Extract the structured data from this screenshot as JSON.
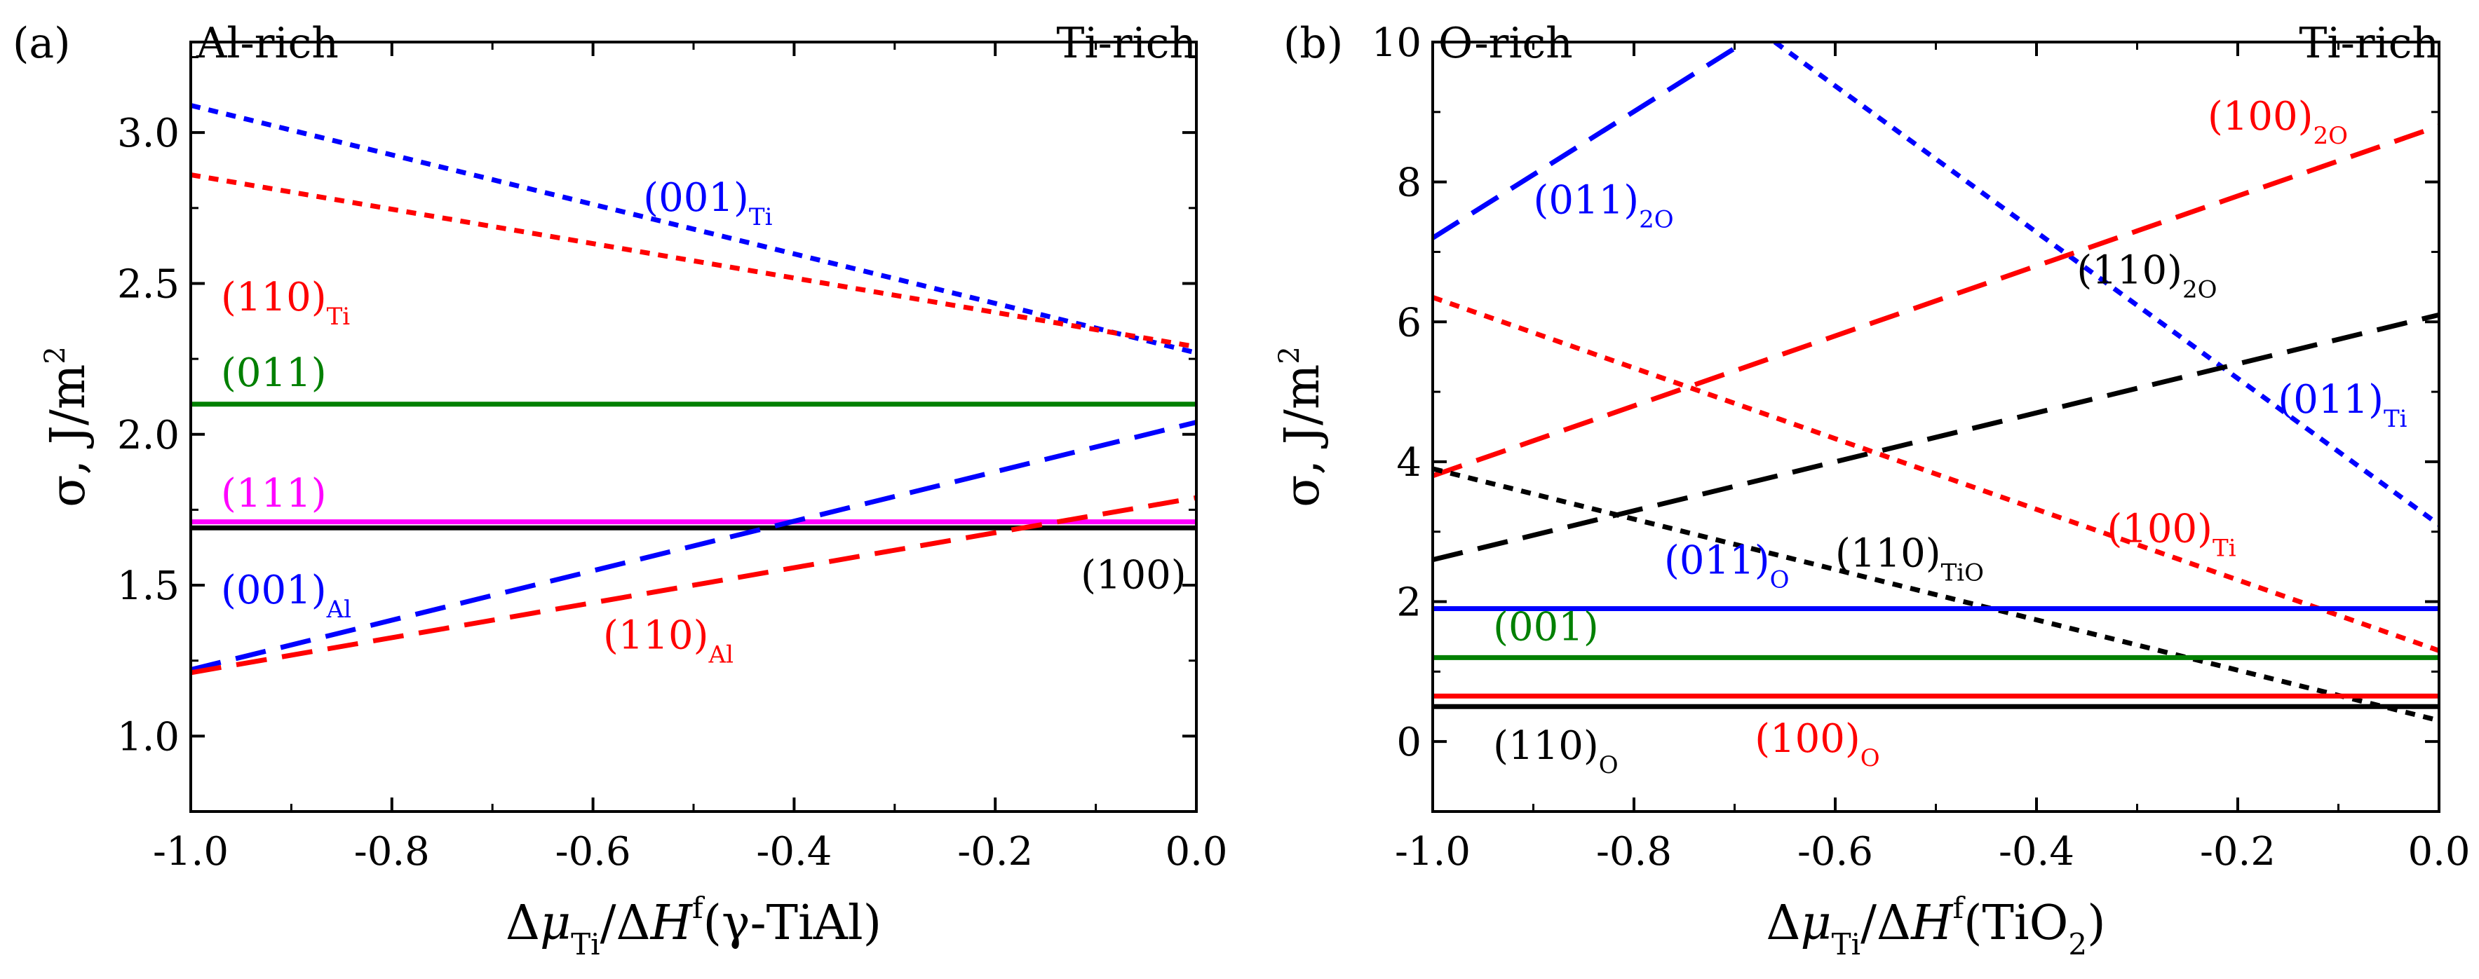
{
  "chart_data": [
    {
      "type": "line",
      "panel_label": "(a)",
      "corner_left": "Al-rich",
      "corner_right": "Ti-rich",
      "xlabel": {
        "delta": "Δ",
        "mu": "μ",
        "mu_sub": "Ti",
        "slash": "/Δ",
        "H": "H",
        "H_sup": "f",
        "rest": "(γ-TiAl)"
      },
      "ylabel": {
        "sigma": "σ, J/m",
        "sup": "2"
      },
      "xlim": [
        -1.0,
        0.0
      ],
      "ylim": [
        0.75,
        3.3
      ],
      "x_ticks": [
        -1.0,
        -0.8,
        -0.6,
        -0.4,
        -0.2,
        0.0
      ],
      "x_tick_labels": [
        "-1.0",
        "-0.8",
        "-0.6",
        "-0.4",
        "-0.2",
        "0.0"
      ],
      "y_ticks": [
        1.0,
        1.5,
        2.0,
        2.5,
        3.0
      ],
      "y_tick_labels": [
        "1.0",
        "1.5",
        "2.0",
        "2.5",
        "3.0"
      ],
      "grid": false,
      "series": [
        {
          "name": "(001)_Ti",
          "main": "(001)",
          "sub": "Ti",
          "color": "#0000ff",
          "style": "dotted",
          "x": [
            -1.0,
            0.0
          ],
          "y": [
            3.09,
            2.27
          ],
          "label_at": [
            -0.55,
            2.74
          ],
          "label_anchor": "start"
        },
        {
          "name": "(110)_Ti",
          "main": "(110)",
          "sub": "Ti",
          "color": "#ff0000",
          "style": "dotted",
          "x": [
            -1.0,
            0.0
          ],
          "y": [
            2.86,
            2.29
          ],
          "label_at": [
            -0.97,
            2.41
          ],
          "label_anchor": "start"
        },
        {
          "name": "(011)",
          "main": "(011)",
          "sub": "",
          "color": "#008000",
          "style": "solid",
          "x": [
            -1.0,
            0.0
          ],
          "y": [
            2.1,
            2.1
          ],
          "label_at": [
            -0.97,
            2.16
          ],
          "label_anchor": "start"
        },
        {
          "name": "(111)",
          "main": "(111)",
          "sub": "",
          "color": "#ff00ff",
          "style": "solid",
          "x": [
            -1.0,
            0.0
          ],
          "y": [
            1.71,
            1.71
          ],
          "label_at": [
            -0.97,
            1.76
          ],
          "label_anchor": "start"
        },
        {
          "name": "(100)",
          "main": "(100)",
          "sub": "",
          "color": "#000000",
          "style": "solid",
          "x": [
            -1.0,
            0.0
          ],
          "y": [
            1.69,
            1.69
          ],
          "label_at": [
            -0.01,
            1.49
          ],
          "label_anchor": "end"
        },
        {
          "name": "(001)_Al",
          "main": "(001)",
          "sub": "Al",
          "color": "#0000ff",
          "style": "dashed",
          "x": [
            -1.0,
            0.0
          ],
          "y": [
            1.22,
            2.04
          ],
          "label_at": [
            -0.97,
            1.44
          ],
          "label_anchor": "start"
        },
        {
          "name": "(110)_Al",
          "main": "(110)",
          "sub": "Al",
          "color": "#ff0000",
          "style": "dashed",
          "x": [
            -1.0,
            0.0
          ],
          "y": [
            1.21,
            1.79
          ],
          "label_at": [
            -0.59,
            1.29
          ],
          "label_anchor": "start"
        }
      ]
    },
    {
      "type": "line",
      "panel_label": "(b)",
      "corner_left": "O-rich",
      "corner_right": "Ti-rich",
      "xlabel": {
        "delta": "Δ",
        "mu": "μ",
        "mu_sub": "Ti",
        "slash": "/Δ",
        "H": "H",
        "H_sup": "f",
        "rest": "(TiO",
        "rest_sub": "2",
        "rest_end": ")"
      },
      "ylabel": {
        "sigma": "σ, J/m",
        "sup": "2"
      },
      "xlim": [
        -1.0,
        0.0
      ],
      "ylim": [
        -1.0,
        10.0
      ],
      "x_ticks": [
        -1.0,
        -0.8,
        -0.6,
        -0.4,
        -0.2,
        0.0
      ],
      "x_tick_labels": [
        "-1.0",
        "-0.8",
        "-0.6",
        "-0.4",
        "-0.2",
        "0.0"
      ],
      "y_ticks": [
        0,
        2,
        4,
        6,
        8,
        10
      ],
      "y_tick_labels": [
        "0",
        "2",
        "4",
        "6",
        "8",
        "10"
      ],
      "grid": false,
      "series": [
        {
          "name": "(011)_2O",
          "main": "(011)",
          "sub": "2O",
          "color": "#0000ff",
          "style": "dashed",
          "x": [
            -1.0,
            -0.69
          ],
          "y": [
            7.2,
            10.0
          ],
          "label_at": [
            -0.9,
            7.55
          ],
          "label_anchor": "start"
        },
        {
          "name": "(011)_Ti",
          "main": "(011)",
          "sub": "Ti",
          "color": "#0000ff",
          "style": "dotted",
          "x": [
            -0.66,
            0.0
          ],
          "y": [
            10.0,
            3.1
          ],
          "label_at": [
            -0.16,
            4.7
          ],
          "label_anchor": "start"
        },
        {
          "name": "(100)_2O",
          "main": "(100)",
          "sub": "2O",
          "color": "#ff0000",
          "style": "dashed",
          "x": [
            -1.0,
            0.0
          ],
          "y": [
            3.8,
            8.8
          ],
          "label_at": [
            -0.23,
            8.75
          ],
          "label_anchor": "start"
        },
        {
          "name": "(110)_2O",
          "main": "(110)",
          "sub": "2O",
          "color": "#000000",
          "style": "dashed",
          "x": [
            -1.0,
            0.0
          ],
          "y": [
            2.6,
            6.1
          ],
          "label_at": [
            -0.36,
            6.55
          ],
          "label_anchor": "start"
        },
        {
          "name": "(100)_Ti",
          "main": "(100)",
          "sub": "Ti",
          "color": "#ff0000",
          "style": "dotted",
          "x": [
            -1.0,
            0.0
          ],
          "y": [
            6.35,
            1.3
          ],
          "label_at": [
            -0.33,
            2.85
          ],
          "label_anchor": "start"
        },
        {
          "name": "(110)_TiO",
          "main": "(110)",
          "sub": "TiO",
          "color": "#000000",
          "style": "dotted",
          "x": [
            -1.0,
            0.0
          ],
          "y": [
            3.9,
            0.3
          ],
          "label_at": [
            -0.6,
            2.5
          ],
          "label_anchor": "start"
        },
        {
          "name": "(011)_O",
          "main": "(011)",
          "sub": "O",
          "color": "#0000ff",
          "style": "solid",
          "x": [
            -1.0,
            0.0
          ],
          "y": [
            1.9,
            1.9
          ],
          "label_at": [
            -0.77,
            2.4
          ],
          "label_anchor": "start"
        },
        {
          "name": "(001)",
          "main": "(001)",
          "sub": "",
          "color": "#008000",
          "style": "solid",
          "x": [
            -1.0,
            0.0
          ],
          "y": [
            1.2,
            1.2
          ],
          "label_at": [
            -0.94,
            1.45
          ],
          "label_anchor": "start"
        },
        {
          "name": "(100)_O",
          "main": "(100)",
          "sub": "O",
          "color": "#ff0000",
          "style": "solid",
          "x": [
            -1.0,
            0.0
          ],
          "y": [
            0.65,
            0.65
          ],
          "label_at": [
            -0.68,
            -0.15
          ],
          "label_anchor": "start"
        },
        {
          "name": "(110)_O",
          "main": "(110)",
          "sub": "O",
          "color": "#000000",
          "style": "solid",
          "x": [
            -1.0,
            0.0
          ],
          "y": [
            0.5,
            0.5
          ],
          "label_at": [
            -0.94,
            -0.25
          ],
          "label_anchor": "start"
        }
      ]
    }
  ]
}
